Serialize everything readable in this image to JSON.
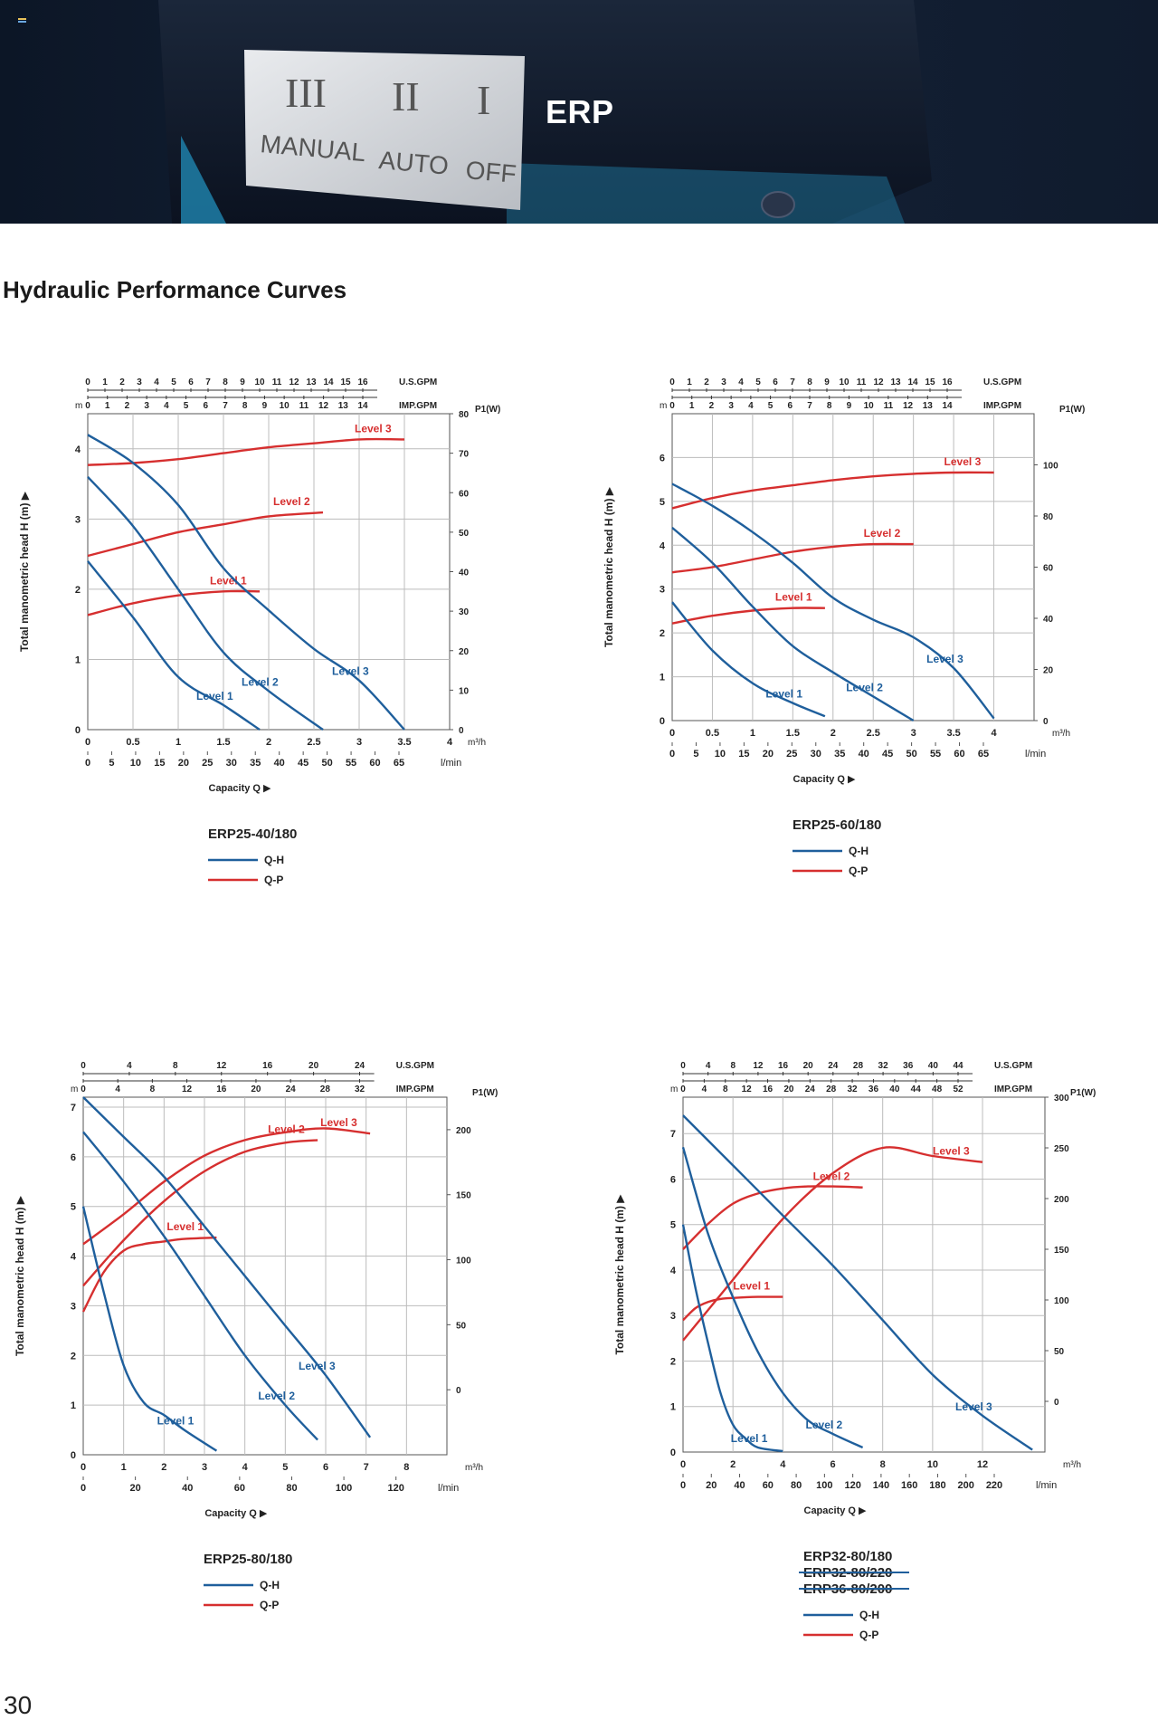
{
  "hero": {
    "title": "ERP",
    "switch_labels": [
      "III",
      "II",
      "I"
    ],
    "mode_labels": [
      "MANUAL",
      "AUTO",
      "OFF"
    ]
  },
  "section_title": "Hydraulic Performance Curves",
  "page_number": "30",
  "colors": {
    "qh": "#1f5f9c",
    "qp": "#d62f2f",
    "grid": "#bcbcbc",
    "hero_bg": "#0f1a2c"
  },
  "common_labels": {
    "yaxis": "Total manometric head H (m)",
    "xaxis": "Capacity Q ▶",
    "usgpm": "U.S.GPM",
    "impgpm": "IMP.GPM",
    "m3h": "m³/h",
    "lmin": "l/min",
    "m": "m",
    "p1": "P1(W)"
  },
  "chart_data": [
    {
      "type": "line",
      "title": "ERP25-40/180",
      "legend": [
        "Q-H",
        "Q-P"
      ],
      "xlim": [
        0,
        4
      ],
      "ylim": [
        0,
        4.5
      ],
      "p_lim": [
        0,
        80
      ],
      "x_ticks": [
        "0",
        "0.5",
        "1",
        "1.5",
        "2",
        "2.5",
        "3",
        "3.5",
        "4"
      ],
      "y_ticks": [
        "0",
        "1",
        "2",
        "3",
        "4"
      ],
      "p_ticks": [
        "0",
        "10",
        "20",
        "30",
        "40",
        "50",
        "60",
        "70",
        "80"
      ],
      "lmin_ticks": [
        "0",
        "5",
        "10",
        "15",
        "20",
        "25",
        "30",
        "35",
        "40",
        "45",
        "50",
        "55",
        "60",
        "65"
      ],
      "us_ticks": [
        "0",
        "1",
        "2",
        "3",
        "4",
        "5",
        "6",
        "7",
        "8",
        "9",
        "10",
        "11",
        "12",
        "13",
        "14",
        "15",
        "16"
      ],
      "imp_ticks": [
        "0",
        "1",
        "2",
        "3",
        "4",
        "5",
        "6",
        "7",
        "8",
        "9",
        "10",
        "11",
        "12",
        "13",
        "14"
      ],
      "qh": [
        {
          "name": "Level 1",
          "x": [
            0,
            0.5,
            1.0,
            1.5,
            1.9
          ],
          "y": [
            2.4,
            1.6,
            0.75,
            0.35,
            0
          ]
        },
        {
          "name": "Level 2",
          "x": [
            0,
            0.5,
            1.0,
            1.5,
            2.0,
            2.6
          ],
          "y": [
            3.6,
            2.9,
            2.0,
            1.1,
            0.55,
            0
          ]
        },
        {
          "name": "Level 3",
          "x": [
            0,
            0.5,
            1.0,
            1.5,
            2.0,
            2.5,
            3.0,
            3.5
          ],
          "y": [
            4.2,
            3.8,
            3.2,
            2.3,
            1.7,
            1.15,
            0.7,
            0
          ]
        }
      ],
      "qp": [
        {
          "name": "Level 1",
          "x": [
            0,
            0.5,
            1.0,
            1.5,
            1.9
          ],
          "y": [
            29,
            32,
            34,
            35,
            35
          ]
        },
        {
          "name": "Level 2",
          "x": [
            0,
            0.5,
            1.0,
            1.5,
            2.0,
            2.6
          ],
          "y": [
            44,
            47,
            50,
            52,
            54,
            55
          ]
        },
        {
          "name": "Level 3",
          "x": [
            0,
            0.5,
            1.0,
            1.5,
            2.0,
            2.5,
            3.0,
            3.5
          ],
          "y": [
            67,
            67.5,
            68.5,
            70,
            71.5,
            72.5,
            73.5,
            73.5
          ]
        }
      ]
    },
    {
      "type": "line",
      "title": "ERP25-60/180",
      "legend": [
        "Q-H",
        "Q-P"
      ],
      "xlim": [
        0,
        4.5
      ],
      "ylim": [
        0,
        7
      ],
      "p_lim": [
        0,
        120
      ],
      "x_ticks": [
        "0",
        "0.5",
        "1",
        "1.5",
        "2",
        "2.5",
        "3",
        "3.5",
        "4"
      ],
      "y_ticks": [
        "0",
        "1",
        "2",
        "3",
        "4",
        "5",
        "6"
      ],
      "p_ticks": [
        "0",
        "20",
        "40",
        "60",
        "80",
        "100"
      ],
      "lmin_ticks": [
        "0",
        "5",
        "10",
        "15",
        "20",
        "25",
        "30",
        "35",
        "40",
        "45",
        "50",
        "55",
        "60",
        "65"
      ],
      "us_ticks": [
        "0",
        "1",
        "2",
        "3",
        "4",
        "5",
        "6",
        "7",
        "8",
        "9",
        "10",
        "11",
        "12",
        "13",
        "14",
        "15",
        "16"
      ],
      "imp_ticks": [
        "0",
        "1",
        "2",
        "3",
        "4",
        "5",
        "6",
        "7",
        "8",
        "9",
        "10",
        "11",
        "12",
        "13",
        "14"
      ],
      "qh": [
        {
          "name": "Level 1",
          "x": [
            0,
            0.5,
            1.0,
            1.5,
            1.9
          ],
          "y": [
            2.7,
            1.6,
            0.85,
            0.4,
            0.1
          ]
        },
        {
          "name": "Level 2",
          "x": [
            0,
            0.5,
            1.0,
            1.5,
            2.0,
            2.5,
            3.0
          ],
          "y": [
            4.4,
            3.6,
            2.6,
            1.7,
            1.1,
            0.55,
            0
          ]
        },
        {
          "name": "Level 3",
          "x": [
            0,
            0.5,
            1.0,
            1.5,
            2.0,
            2.5,
            3.0,
            3.5,
            4.0
          ],
          "y": [
            5.4,
            4.9,
            4.3,
            3.6,
            2.8,
            2.3,
            1.9,
            1.2,
            0.05
          ]
        }
      ],
      "qp": [
        {
          "name": "Level 1",
          "x": [
            0,
            0.5,
            1.0,
            1.5,
            1.9
          ],
          "y": [
            38,
            41,
            43,
            44,
            44
          ]
        },
        {
          "name": "Level 2",
          "x": [
            0,
            0.5,
            1.0,
            1.5,
            2.0,
            2.5,
            3.0
          ],
          "y": [
            58,
            60,
            63,
            66,
            68,
            69,
            69
          ]
        },
        {
          "name": "Level 3",
          "x": [
            0,
            0.5,
            1.0,
            1.5,
            2.0,
            2.5,
            3.0,
            3.5,
            4.0
          ],
          "y": [
            83,
            87,
            90,
            92,
            94,
            95.5,
            96.5,
            97,
            97
          ]
        }
      ]
    },
    {
      "type": "line",
      "title": "ERP25-80/180",
      "legend": [
        "Q-H",
        "Q-P"
      ],
      "xlim": [
        0,
        9
      ],
      "ylim": [
        0,
        7.2
      ],
      "p_lim": [
        -50,
        225
      ],
      "x_ticks": [
        "0",
        "1",
        "2",
        "3",
        "4",
        "5",
        "6",
        "7",
        "8"
      ],
      "y_ticks": [
        "0",
        "1",
        "2",
        "3",
        "4",
        "5",
        "6",
        "7"
      ],
      "p_ticks": [
        "0",
        "50",
        "100",
        "150",
        "200"
      ],
      "lmin_ticks": [
        "0",
        "20",
        "40",
        "60",
        "80",
        "100",
        "120"
      ],
      "us_ticks": [
        "0",
        "4",
        "8",
        "12",
        "16",
        "20",
        "24"
      ],
      "imp_ticks": [
        "0",
        "4",
        "8",
        "12",
        "16",
        "20",
        "24",
        "28",
        "32"
      ],
      "qh": [
        {
          "name": "Level 1",
          "x": [
            0,
            0.5,
            1.0,
            1.5,
            2.0,
            2.5,
            3.3
          ],
          "y": [
            5.0,
            3.3,
            1.8,
            1.05,
            0.8,
            0.5,
            0.08
          ]
        },
        {
          "name": "Level 2",
          "x": [
            0,
            1,
            2,
            3,
            4,
            5,
            5.8
          ],
          "y": [
            6.5,
            5.5,
            4.4,
            3.2,
            2.0,
            1.0,
            0.3
          ]
        },
        {
          "name": "Level 3",
          "x": [
            0,
            1,
            2,
            3,
            4,
            5,
            6,
            7.1
          ],
          "y": [
            7.2,
            6.4,
            5.6,
            4.6,
            3.6,
            2.6,
            1.6,
            0.35
          ]
        }
      ],
      "qp": [
        {
          "name": "Level 1",
          "x": [
            0,
            0.5,
            1.0,
            1.5,
            2.0,
            2.5,
            3.3
          ],
          "y": [
            60,
            90,
            107,
            112,
            114,
            116,
            117
          ]
        },
        {
          "name": "Level 2",
          "x": [
            0,
            1,
            2,
            3,
            4,
            5,
            5.8
          ],
          "y": [
            80,
            115,
            145,
            168,
            183,
            190,
            192
          ]
        },
        {
          "name": "Level 3",
          "x": [
            0,
            1,
            2,
            3,
            4,
            5,
            6,
            7.1
          ],
          "y": [
            112,
            135,
            160,
            180,
            192,
            198,
            201,
            197
          ]
        }
      ]
    },
    {
      "type": "line",
      "title": "ERP32-80/180",
      "title_struck": [
        "ERP32-80/220",
        "ERP36-80/200"
      ],
      "legend": [
        "Q-H",
        "Q-P"
      ],
      "xlim": [
        0,
        14.5
      ],
      "ylim": [
        0,
        7.8
      ],
      "p_lim": [
        -50,
        300
      ],
      "x_ticks": [
        "0",
        "2",
        "4",
        "6",
        "8",
        "10",
        "12"
      ],
      "y_ticks": [
        "0",
        "1",
        "2",
        "3",
        "4",
        "5",
        "6",
        "7"
      ],
      "p_ticks": [
        "0",
        "50",
        "100",
        "150",
        "200",
        "250",
        "300"
      ],
      "lmin_ticks": [
        "0",
        "20",
        "40",
        "60",
        "80",
        "100",
        "120",
        "140",
        "160",
        "180",
        "200",
        "220"
      ],
      "us_ticks": [
        "0",
        "4",
        "8",
        "12",
        "16",
        "20",
        "24",
        "28",
        "32",
        "36",
        "40",
        "44"
      ],
      "imp_ticks": [
        "0",
        "4",
        "8",
        "12",
        "16",
        "20",
        "24",
        "28",
        "32",
        "36",
        "40",
        "44",
        "48",
        "52"
      ],
      "qh": [
        {
          "name": "Level 1",
          "x": [
            0,
            0.5,
            1.0,
            1.5,
            2.0,
            2.5,
            3.0,
            4.0
          ],
          "y": [
            5.0,
            3.6,
            2.4,
            1.3,
            0.6,
            0.3,
            0.1,
            0.02
          ]
        },
        {
          "name": "Level 2",
          "x": [
            0,
            1,
            2,
            3,
            4,
            5,
            6,
            7.2
          ],
          "y": [
            6.7,
            4.8,
            3.4,
            2.2,
            1.3,
            0.7,
            0.4,
            0.1
          ]
        },
        {
          "name": "Level 3",
          "x": [
            0,
            2,
            4,
            6,
            8,
            10,
            12,
            14.0
          ],
          "y": [
            7.4,
            6.3,
            5.2,
            4.1,
            2.9,
            1.7,
            0.8,
            0.05
          ]
        }
      ],
      "qp": [
        {
          "name": "Level 1",
          "x": [
            0,
            0.5,
            1.0,
            1.5,
            2.0,
            3.0,
            4.0
          ],
          "y": [
            80,
            92,
            98,
            101,
            102,
            103,
            103
          ]
        },
        {
          "name": "Level 2",
          "x": [
            0,
            1,
            2,
            3,
            4,
            5,
            6,
            7.2
          ],
          "y": [
            150,
            175,
            195,
            205,
            210,
            212,
            212,
            211
          ]
        },
        {
          "name": "Level 3",
          "x": [
            0,
            2,
            4,
            6,
            8,
            10,
            12
          ],
          "y": [
            60,
            120,
            180,
            225,
            250,
            242,
            236
          ]
        }
      ]
    }
  ]
}
